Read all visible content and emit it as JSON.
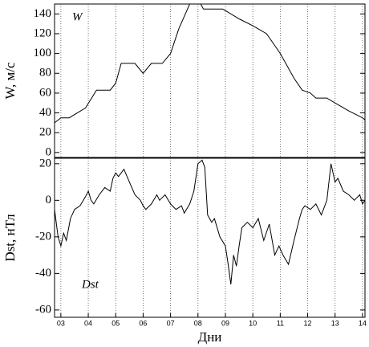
{
  "chart_data": [
    {
      "type": "line",
      "annotation": "W",
      "ylabel": "W, м/с",
      "color": "#000000",
      "x": [
        2.77,
        3.0,
        3.3,
        3.9,
        4.3,
        4.8,
        5.0,
        5.2,
        5.7,
        6.0,
        6.3,
        6.7,
        7.0,
        7.3,
        7.7,
        8.1,
        8.2,
        8.9,
        9.2,
        9.5,
        10.0,
        10.5,
        11.0,
        11.5,
        11.8,
        12.1,
        12.3,
        12.7,
        13.0,
        13.5,
        14.0,
        14.09
      ],
      "values": [
        30,
        35,
        35,
        45,
        63,
        63,
        70,
        90,
        90,
        80,
        90,
        90,
        100,
        125,
        150,
        150,
        145,
        145,
        140,
        135,
        128,
        120,
        100,
        75,
        63,
        60,
        55,
        55,
        50,
        42,
        35,
        33
      ],
      "xlim": [
        2.77,
        14.09
      ],
      "xticks": [
        3,
        4,
        5,
        6,
        7,
        8,
        9,
        10,
        11,
        12,
        13,
        14
      ],
      "ylim": [
        -5,
        150
      ],
      "yticks": [
        0,
        20,
        40,
        60,
        80,
        100,
        120,
        140
      ],
      "grid": "x"
    },
    {
      "type": "line",
      "annotation": "Dst",
      "ylabel": "Dst, нТл",
      "xlabel": "Дни",
      "color": "#000000",
      "x": [
        2.77,
        2.9,
        3.0,
        3.1,
        3.2,
        3.35,
        3.5,
        3.7,
        3.9,
        4.0,
        4.1,
        4.2,
        4.4,
        4.6,
        4.8,
        4.9,
        5.0,
        5.1,
        5.3,
        5.5,
        5.7,
        5.9,
        6.0,
        6.1,
        6.3,
        6.5,
        6.6,
        6.8,
        7.0,
        7.2,
        7.4,
        7.5,
        7.7,
        7.85,
        8.0,
        8.15,
        8.25,
        8.35,
        8.5,
        8.6,
        8.8,
        9.0,
        9.1,
        9.2,
        9.3,
        9.4,
        9.5,
        9.6,
        9.8,
        10.0,
        10.2,
        10.4,
        10.6,
        10.8,
        10.95,
        11.1,
        11.3,
        11.5,
        11.7,
        11.8,
        11.9,
        12.1,
        12.3,
        12.5,
        12.7,
        12.85,
        13.0,
        13.1,
        13.3,
        13.5,
        13.7,
        13.9,
        14.0,
        14.09
      ],
      "values": [
        -5,
        -20,
        -25,
        -18,
        -22,
        -10,
        -5,
        -3,
        2,
        5,
        0,
        -2,
        3,
        7,
        5,
        12,
        15,
        13,
        17,
        10,
        3,
        0,
        -3,
        -5,
        -2,
        3,
        0,
        3,
        -2,
        -5,
        -3,
        -7,
        -2,
        5,
        20,
        22,
        18,
        -8,
        -12,
        -10,
        -20,
        -25,
        -35,
        -46,
        -30,
        -36,
        -25,
        -15,
        -12,
        -15,
        -10,
        -22,
        -13,
        -30,
        -25,
        -30,
        -35,
        -22,
        -10,
        -5,
        -3,
        -5,
        -2,
        -8,
        0,
        20,
        10,
        12,
        5,
        3,
        0,
        3,
        -2,
        0
      ],
      "xlim": [
        2.77,
        14.09
      ],
      "xticks": [
        {
          "value": 3,
          "label": "03"
        },
        {
          "value": 4,
          "label": "04"
        },
        {
          "value": 5,
          "label": "05"
        },
        {
          "value": 6,
          "label": "06"
        },
        {
          "value": 7,
          "label": "07"
        },
        {
          "value": 8,
          "label": "08"
        },
        {
          "value": 9,
          "label": "09"
        },
        {
          "value": 10,
          "label": "10"
        },
        {
          "value": 11,
          "label": "11"
        },
        {
          "value": 12,
          "label": "12"
        },
        {
          "value": 13,
          "label": "13"
        },
        {
          "value": 14,
          "label": "14"
        }
      ],
      "ylim": [
        -64,
        23
      ],
      "yticks": [
        -60,
        -40,
        -20,
        0,
        20
      ],
      "grid": "x"
    }
  ]
}
